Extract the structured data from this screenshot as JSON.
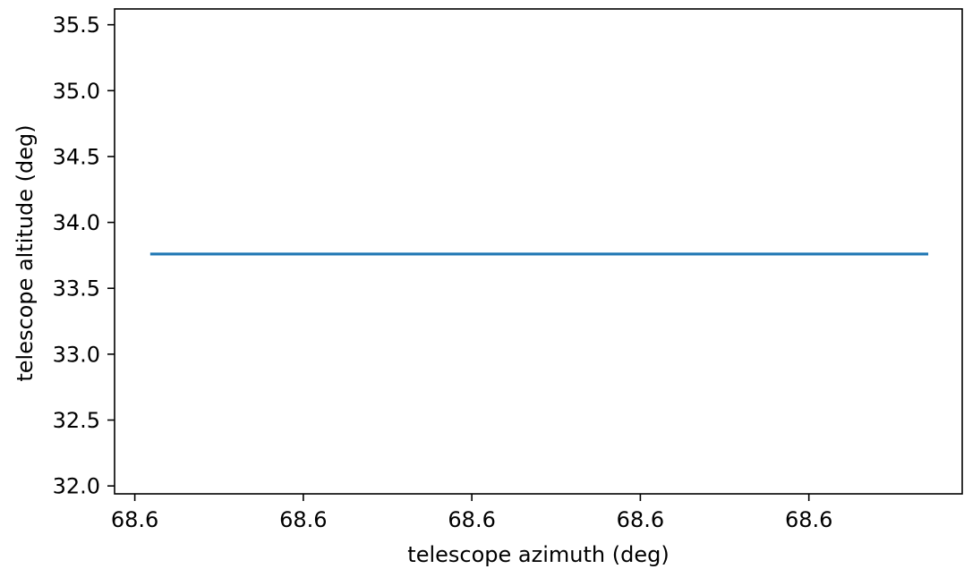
{
  "chart_data": {
    "type": "line",
    "title": "",
    "xlabel": "telescope azimuth (deg)",
    "ylabel": "telescope altitude (deg)",
    "x_ticks": [
      {
        "value": 0.0,
        "label": "68.6"
      },
      {
        "value": 1.0,
        "label": "68.6"
      },
      {
        "value": 2.0,
        "label": "68.6"
      },
      {
        "value": 3.0,
        "label": "68.6"
      },
      {
        "value": 4.0,
        "label": "68.6"
      }
    ],
    "y_ticks": [
      {
        "value": 32.0,
        "label": "32.0"
      },
      {
        "value": 32.5,
        "label": "32.5"
      },
      {
        "value": 33.0,
        "label": "33.0"
      },
      {
        "value": 33.5,
        "label": "33.5"
      },
      {
        "value": 34.0,
        "label": "34.0"
      },
      {
        "value": 34.5,
        "label": "34.5"
      },
      {
        "value": 35.0,
        "label": "35.0"
      },
      {
        "value": 35.5,
        "label": "35.5"
      }
    ],
    "xlim": [
      -0.12,
      4.91
    ],
    "ylim": [
      31.94,
      35.62
    ],
    "series": [
      {
        "color": "#1f77b4",
        "x": [
          0.1,
          4.7
        ],
        "y": [
          33.76,
          33.76
        ]
      }
    ],
    "grid": false,
    "legend": "none"
  }
}
